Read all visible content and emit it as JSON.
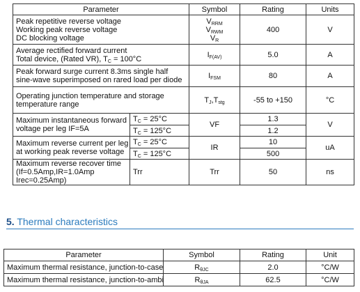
{
  "table1": {
    "header": [
      "Parameter",
      "Symbol",
      "Rating",
      "Units"
    ],
    "rows": [
      {
        "parameter": [
          "Peak repetitive reverse voltage",
          "Working peak reverse voltage",
          "DC blocking voltage"
        ],
        "symbol": [
          [
            {
              "text": "V"
            },
            {
              "sub": "RRM"
            }
          ],
          [
            {
              "text": "V"
            },
            {
              "sub": "RWM"
            }
          ],
          [
            {
              "text": "V"
            },
            {
              "sub": "R"
            }
          ]
        ],
        "rating": "400",
        "units": "V"
      },
      {
        "parameter": [
          "Average rectified forward current",
          [
            {
              "text": "Total device, (Rated VR), T"
            },
            {
              "sub": "C"
            },
            {
              "text": " = 100°C"
            }
          ]
        ],
        "symbol": [
          {
            "text": "I"
          },
          {
            "sub": "F(AV)"
          }
        ],
        "rating": "5.0",
        "units": "A"
      },
      {
        "parameter": [
          "Peak forward surge current 8.3ms single half",
          "sine-wave superimposed on rared load per diode"
        ],
        "symbol": [
          {
            "text": "I"
          },
          {
            "sub": "FSM"
          }
        ],
        "rating": "80",
        "units": "A"
      },
      {
        "parameter": [
          "Operating junction temperature and storage",
          "temperature range"
        ],
        "symbol": [
          {
            "text": "T"
          },
          {
            "sub": "J"
          },
          {
            "text": ",T"
          },
          {
            "sub": "stg"
          }
        ],
        "rating": "-55 to +150",
        "units": "°C"
      },
      {
        "parameter": [
          "Maximum instantaneous forward",
          "voltage per leg    IF=5A"
        ],
        "conditions": [
          [
            {
              "text": "T"
            },
            {
              "sub": "C"
            },
            {
              "text": " = 25°C"
            }
          ],
          [
            {
              "text": "T"
            },
            {
              "sub": "C"
            },
            {
              "text": " = 125°C"
            }
          ]
        ],
        "symbol": "VF",
        "ratings": [
          "1.3",
          "1.2"
        ],
        "units": "V"
      },
      {
        "parameter": [
          "Maximum reverse current per leg",
          "at working peak reverse voltage"
        ],
        "conditions": [
          [
            {
              "text": "T"
            },
            {
              "sub": "C"
            },
            {
              "text": " = 25°C"
            }
          ],
          [
            {
              "text": "T"
            },
            {
              "sub": "C"
            },
            {
              "text": " = 125°C"
            }
          ]
        ],
        "symbol": "IR",
        "ratings": [
          "10",
          "500"
        ],
        "units": "uA"
      },
      {
        "parameter": [
          "Maximum reverse recover time",
          "(If=0.5Amp,IR=1.0Amp",
          "Irec=0.25Amp)"
        ],
        "condition": "Trr",
        "symbol": "Trr",
        "rating": "50",
        "units": "ns"
      }
    ]
  },
  "section": {
    "number": "5.",
    "title": "Thermal characteristics"
  },
  "table2": {
    "header": [
      "Parameter",
      "Symbol",
      "Rating",
      "Unit"
    ],
    "rows": [
      [
        "Maximum thermal resistance, junction-to-case",
        [
          {
            "text": "R"
          },
          {
            "sub": "θJC"
          }
        ],
        "2.0",
        "°C/W"
      ],
      [
        "Maximum thermal resistance, junction-to-ambient",
        [
          {
            "text": "R"
          },
          {
            "sub": "θJA"
          }
        ],
        "62.5",
        "°C/W"
      ]
    ]
  }
}
